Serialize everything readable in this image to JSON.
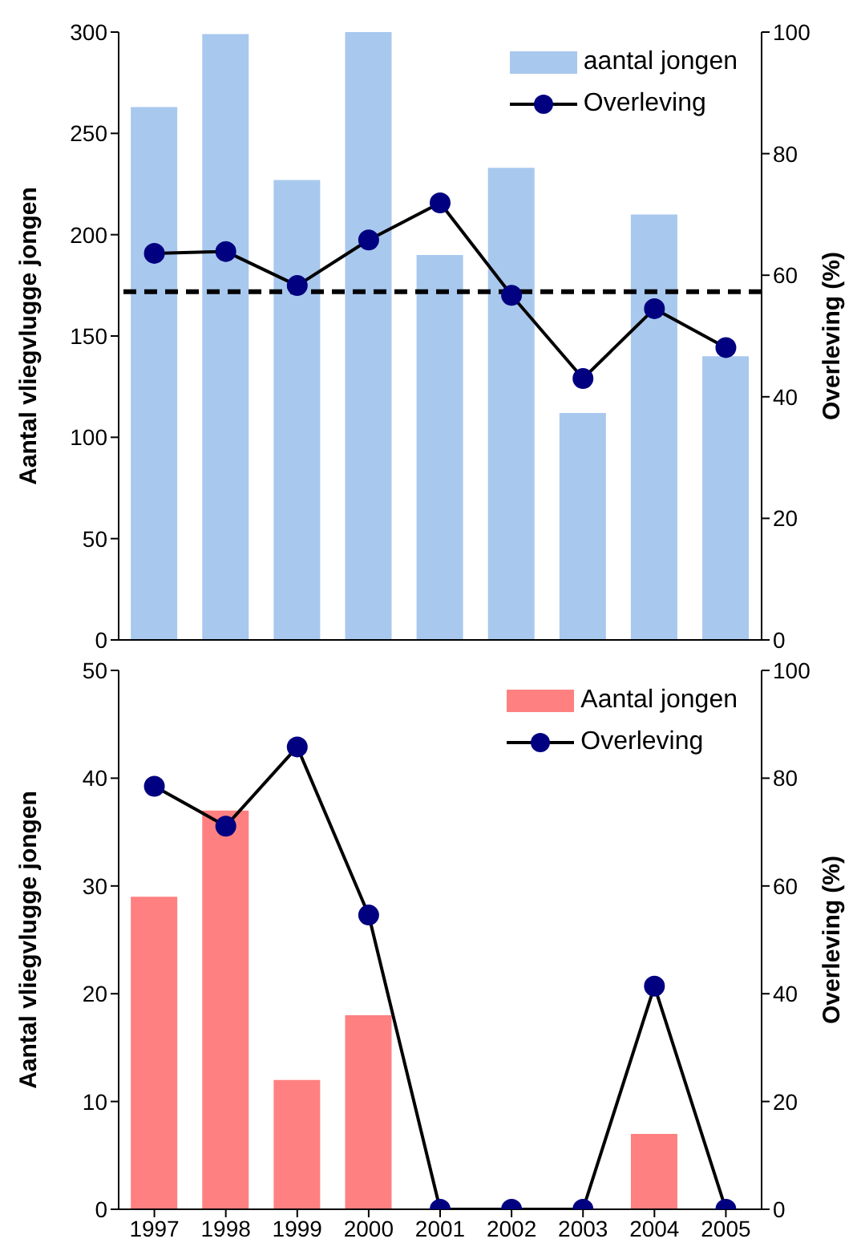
{
  "chart_data": [
    {
      "type": "bar",
      "categories": [
        "1997",
        "1998",
        "1999",
        "2000",
        "2001",
        "2002",
        "2003",
        "2004",
        "2005"
      ],
      "ylabel": "Aantal vliegvlugge jongen",
      "y2label": "Overleving (%)",
      "ylim": [
        0,
        300
      ],
      "yticks": [
        0,
        50,
        100,
        150,
        200,
        250,
        300
      ],
      "y2lim": [
        0,
        100
      ],
      "y2ticks": [
        0,
        20,
        40,
        60,
        80,
        100
      ],
      "tick_labels": "y",
      "legend": "top right",
      "grid": false,
      "series": [
        {
          "name": "aantal jongen",
          "color": "#a8c8ee",
          "values": [
            263,
            299,
            227,
            300,
            190,
            233,
            112,
            210,
            140
          ]
        },
        {
          "name": "Overleving",
          "type": "line",
          "axis": "y2",
          "color": "#000080",
          "marker": "circle",
          "values": [
            63.6,
            63.9,
            58.3,
            65.8,
            71.9,
            56.7,
            43,
            54.5,
            48.1
          ]
        }
      ],
      "ref_lines": [
        {
          "axis": "y2",
          "value": 57.3,
          "color": "#000000",
          "line_style": "dashed"
        }
      ]
    },
    {
      "type": "bar",
      "categories": [
        "1997",
        "1998",
        "1999",
        "2000",
        "2001",
        "2002",
        "2003",
        "2004",
        "2005"
      ],
      "ylabel": "Aantal vliegvlugge jongen",
      "y2label": "Overleving (%)",
      "ylim": [
        0,
        50
      ],
      "yticks": [
        0,
        10,
        20,
        30,
        40,
        50
      ],
      "y2lim": [
        0,
        100
      ],
      "y2ticks": [
        0,
        20,
        40,
        60,
        80,
        100
      ],
      "legend": "top right",
      "grid": false,
      "series": [
        {
          "name": "Aantal jongen",
          "color": "#ff8080",
          "values": [
            29,
            37,
            12,
            18,
            0,
            0,
            0,
            7,
            0
          ]
        },
        {
          "name": "Overleving",
          "type": "line",
          "axis": "y2",
          "color": "#000080",
          "marker": "circle",
          "values": [
            78.5,
            71.1,
            85.8,
            54.6,
            0,
            0,
            0,
            41.4,
            0
          ]
        }
      ]
    }
  ]
}
